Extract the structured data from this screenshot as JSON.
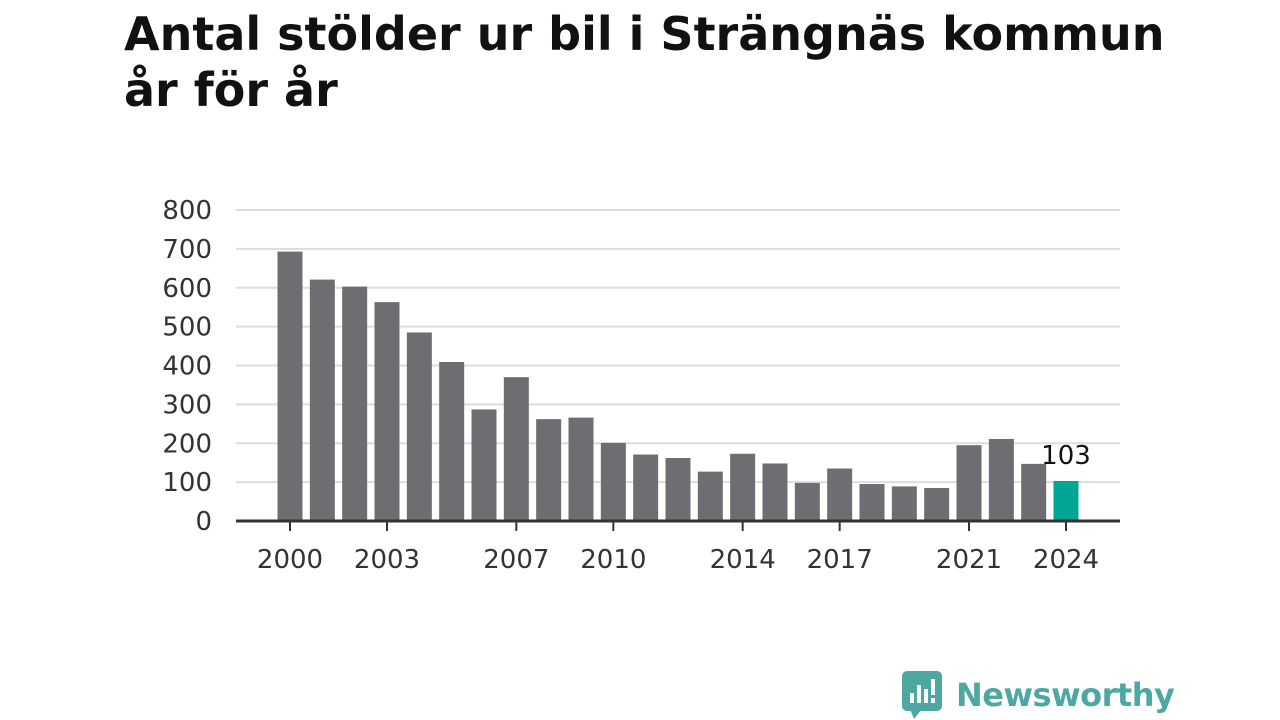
{
  "colors": {
    "bar": "#6e6d72",
    "highlight": "#00a594",
    "grid": "#dddddd",
    "axis": "#333333",
    "brand": "#4ca8a0"
  },
  "brand": {
    "name": "Newsworthy",
    "icon": "newsworthy-logo-icon"
  },
  "chart_data": {
    "type": "bar",
    "title": "Antal stölder ur bil i Strängnäs kommun år för år",
    "xlabel": "",
    "ylabel": "",
    "ylim": [
      0,
      800
    ],
    "yticks": [
      0,
      100,
      200,
      300,
      400,
      500,
      600,
      700,
      800
    ],
    "yticklabels": [
      "0",
      "100",
      "200",
      "300",
      "400",
      "500",
      "600",
      "700",
      "800"
    ],
    "grid": true,
    "x": [
      2000,
      2001,
      2002,
      2003,
      2004,
      2005,
      2006,
      2007,
      2008,
      2009,
      2010,
      2011,
      2012,
      2013,
      2014,
      2015,
      2016,
      2017,
      2018,
      2019,
      2020,
      2021,
      2022,
      2023,
      2024
    ],
    "values": [
      693,
      621,
      603,
      563,
      485,
      409,
      287,
      370,
      262,
      266,
      201,
      171,
      162,
      127,
      173,
      148,
      98,
      135,
      95,
      89,
      85,
      195,
      211,
      147,
      103
    ],
    "xticklabels": [
      "2000",
      "2003",
      "2007",
      "2010",
      "2014",
      "2017",
      "2021",
      "2024"
    ],
    "highlight_index": 24,
    "highlight_label": "103"
  }
}
